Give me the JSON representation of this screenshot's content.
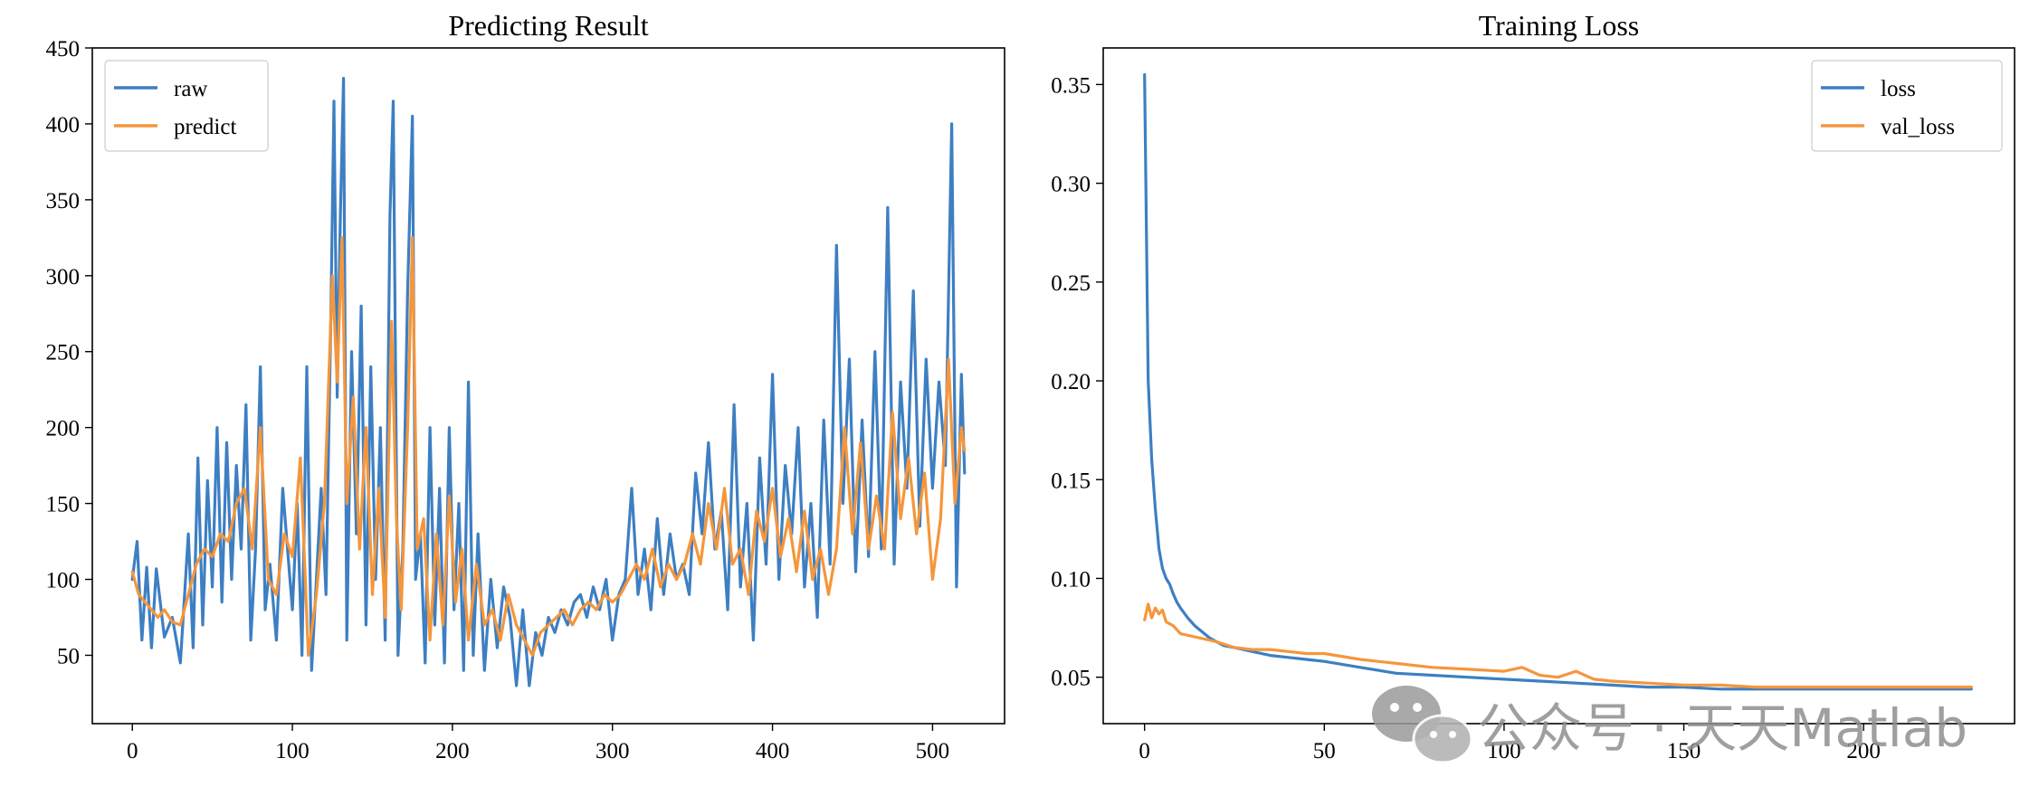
{
  "colors": {
    "series1": "#3d7fc2",
    "series2": "#f5963c",
    "watermark": "#8f8f8f"
  },
  "watermark": {
    "icon": "wechat-icon",
    "text": "公众号 · 天天Matlab"
  },
  "chart_data": [
    {
      "type": "line",
      "title": "Predicting Result",
      "xlabel": "",
      "ylabel": "",
      "xlim": [
        -25,
        545
      ],
      "ylim": [
        5,
        450
      ],
      "xticks": [
        0,
        100,
        200,
        300,
        400,
        500
      ],
      "yticks": [
        50,
        100,
        150,
        200,
        250,
        300,
        350,
        400,
        450
      ],
      "grid": false,
      "legend": "top-left",
      "series": [
        {
          "name": "raw",
          "color": "#3d7fc2",
          "x": [
            0,
            3,
            6,
            9,
            12,
            15,
            20,
            25,
            30,
            35,
            38,
            41,
            44,
            47,
            50,
            53,
            56,
            59,
            62,
            65,
            68,
            71,
            74,
            77,
            80,
            83,
            86,
            90,
            94,
            97,
            100,
            103,
            106,
            109,
            112,
            115,
            118,
            121,
            124,
            126,
            128,
            130,
            132,
            134,
            137,
            140,
            143,
            146,
            149,
            152,
            155,
            158,
            161,
            163,
            166,
            169,
            172,
            175,
            177,
            180,
            183,
            186,
            189,
            192,
            195,
            198,
            201,
            204,
            207,
            210,
            213,
            216,
            220,
            224,
            228,
            232,
            236,
            240,
            244,
            248,
            252,
            256,
            260,
            264,
            268,
            272,
            276,
            280,
            284,
            288,
            292,
            296,
            300,
            304,
            308,
            312,
            316,
            320,
            324,
            328,
            332,
            336,
            340,
            344,
            348,
            352,
            356,
            360,
            364,
            368,
            372,
            376,
            380,
            384,
            388,
            392,
            396,
            400,
            404,
            408,
            412,
            416,
            420,
            424,
            428,
            432,
            436,
            440,
            444,
            448,
            452,
            456,
            460,
            464,
            468,
            472,
            476,
            480,
            484,
            488,
            492,
            496,
            500,
            504,
            508,
            512,
            515,
            518,
            520
          ],
          "y": [
            100,
            125,
            60,
            108,
            55,
            107,
            62,
            75,
            45,
            130,
            55,
            180,
            70,
            165,
            95,
            200,
            85,
            190,
            100,
            175,
            120,
            215,
            60,
            120,
            240,
            80,
            110,
            60,
            160,
            120,
            80,
            150,
            50,
            240,
            40,
            100,
            160,
            90,
            270,
            415,
            220,
            340,
            430,
            60,
            250,
            130,
            280,
            70,
            240,
            100,
            200,
            60,
            340,
            415,
            50,
            120,
            290,
            405,
            100,
            130,
            45,
            200,
            70,
            160,
            45,
            200,
            80,
            150,
            40,
            230,
            50,
            130,
            40,
            100,
            55,
            95,
            75,
            30,
            80,
            30,
            65,
            50,
            75,
            65,
            80,
            70,
            85,
            90,
            75,
            95,
            80,
            100,
            60,
            90,
            100,
            160,
            90,
            120,
            80,
            140,
            90,
            130,
            100,
            110,
            90,
            170,
            130,
            190,
            120,
            145,
            80,
            215,
            95,
            150,
            60,
            180,
            110,
            235,
            100,
            175,
            130,
            200,
            95,
            150,
            75,
            205,
            110,
            320,
            150,
            245,
            105,
            205,
            115,
            250,
            120,
            345,
            110,
            230,
            160,
            290,
            135,
            245,
            160,
            230,
            175,
            400,
            95,
            235,
            170
          ]
        },
        {
          "name": "predict",
          "color": "#f5963c",
          "x": [
            0,
            4,
            8,
            12,
            16,
            20,
            25,
            30,
            35,
            40,
            45,
            50,
            55,
            60,
            65,
            70,
            75,
            80,
            85,
            90,
            95,
            100,
            105,
            110,
            115,
            120,
            125,
            128,
            131,
            134,
            138,
            142,
            146,
            150,
            154,
            158,
            162,
            165,
            168,
            172,
            175,
            178,
            182,
            186,
            190,
            194,
            198,
            202,
            206,
            210,
            215,
            220,
            225,
            230,
            235,
            240,
            245,
            250,
            255,
            260,
            265,
            270,
            275,
            280,
            285,
            290,
            295,
            300,
            305,
            310,
            315,
            320,
            325,
            330,
            335,
            340,
            345,
            350,
            355,
            360,
            365,
            370,
            375,
            380,
            385,
            390,
            395,
            400,
            405,
            410,
            415,
            420,
            425,
            430,
            435,
            440,
            445,
            450,
            455,
            460,
            465,
            470,
            475,
            480,
            485,
            490,
            495,
            500,
            505,
            510,
            514,
            518,
            520
          ],
          "y": [
            105,
            90,
            85,
            80,
            75,
            80,
            72,
            70,
            90,
            110,
            120,
            115,
            130,
            125,
            150,
            160,
            120,
            200,
            100,
            90,
            130,
            115,
            180,
            50,
            90,
            150,
            300,
            230,
            325,
            150,
            220,
            120,
            200,
            90,
            160,
            75,
            270,
            140,
            80,
            200,
            325,
            120,
            140,
            60,
            130,
            70,
            155,
            85,
            120,
            60,
            110,
            70,
            80,
            60,
            90,
            70,
            60,
            50,
            65,
            70,
            75,
            80,
            70,
            80,
            85,
            80,
            90,
            85,
            90,
            100,
            110,
            100,
            120,
            95,
            110,
            100,
            110,
            130,
            110,
            150,
            120,
            160,
            110,
            120,
            90,
            145,
            125,
            160,
            115,
            140,
            105,
            145,
            100,
            120,
            90,
            120,
            200,
            130,
            190,
            120,
            155,
            120,
            210,
            140,
            180,
            130,
            170,
            100,
            140,
            245,
            150,
            200,
            185
          ]
        }
      ]
    },
    {
      "type": "line",
      "title": "Training Loss",
      "xlabel": "",
      "ylabel": "",
      "xlim": [
        -11.5,
        242
      ],
      "ylim": [
        0.0265,
        0.3685
      ],
      "xticks": [
        0,
        50,
        100,
        150,
        200
      ],
      "yticks": [
        0.05,
        0.1,
        0.15,
        0.2,
        0.25,
        0.3,
        0.35
      ],
      "grid": false,
      "legend": "top-right",
      "series": [
        {
          "name": "loss",
          "color": "#3d7fc2",
          "x": [
            0,
            1,
            2,
            3,
            4,
            5,
            6,
            7,
            8,
            9,
            10,
            12,
            14,
            16,
            18,
            20,
            22,
            25,
            30,
            35,
            40,
            45,
            50,
            60,
            70,
            80,
            90,
            100,
            110,
            120,
            130,
            140,
            150,
            160,
            170,
            180,
            190,
            200,
            210,
            220,
            230
          ],
          "y": [
            0.355,
            0.2,
            0.16,
            0.135,
            0.115,
            0.105,
            0.1,
            0.097,
            0.092,
            0.088,
            0.085,
            0.08,
            0.076,
            0.073,
            0.07,
            0.068,
            0.066,
            0.065,
            0.063,
            0.061,
            0.06,
            0.059,
            0.058,
            0.055,
            0.052,
            0.051,
            0.05,
            0.049,
            0.048,
            0.047,
            0.046,
            0.045,
            0.045,
            0.044,
            0.044,
            0.044,
            0.044,
            0.044,
            0.044,
            0.044,
            0.044
          ]
        },
        {
          "name": "val_loss",
          "color": "#f5963c",
          "x": [
            0,
            1,
            2,
            3,
            4,
            5,
            6,
            8,
            10,
            15,
            20,
            25,
            30,
            35,
            40,
            45,
            50,
            60,
            70,
            80,
            90,
            100,
            105,
            110,
            115,
            120,
            125,
            130,
            140,
            150,
            160,
            170,
            180,
            190,
            200,
            210,
            220,
            230
          ],
          "y": [
            0.079,
            0.087,
            0.08,
            0.085,
            0.082,
            0.084,
            0.078,
            0.076,
            0.072,
            0.07,
            0.068,
            0.065,
            0.064,
            0.064,
            0.063,
            0.062,
            0.062,
            0.059,
            0.057,
            0.055,
            0.054,
            0.053,
            0.055,
            0.051,
            0.05,
            0.053,
            0.049,
            0.048,
            0.047,
            0.046,
            0.046,
            0.045,
            0.045,
            0.045,
            0.045,
            0.045,
            0.045,
            0.045
          ]
        }
      ]
    }
  ]
}
